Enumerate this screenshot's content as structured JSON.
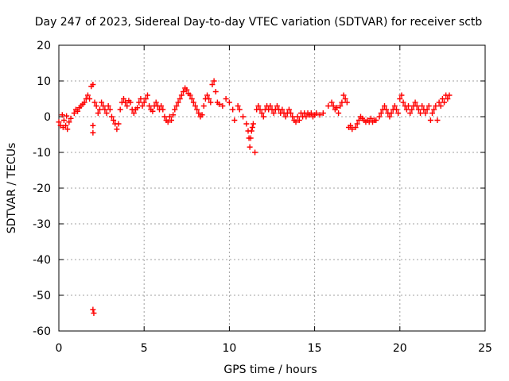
{
  "chart_data": {
    "type": "scatter",
    "title": "Day 247 of 2023, Sidereal Day-to-day VTEC variation (SDTVAR) for receiver sctb",
    "xlabel": "GPS time / hours",
    "ylabel": "SDTVAR / TECUs",
    "xlim": [
      0,
      25
    ],
    "ylim": [
      -60,
      20
    ],
    "xticks": [
      0,
      5,
      10,
      15,
      20,
      25
    ],
    "yticks": [
      -60,
      -50,
      -40,
      -30,
      -20,
      -10,
      0,
      10,
      20
    ],
    "xtick_labels": [
      "0",
      "5",
      "10",
      "15",
      "20",
      "25"
    ],
    "ytick_labels": [
      "-60",
      "-50",
      "-40",
      "-30",
      "-20",
      "-10",
      "0",
      "10",
      "20"
    ],
    "grid": true,
    "marker": "+",
    "series_color": "#ff0000",
    "series": [
      {
        "name": "SDTVAR",
        "points": [
          [
            0.0,
            -1.5
          ],
          [
            0.1,
            -2.5
          ],
          [
            0.2,
            0.5
          ],
          [
            0.25,
            -3
          ],
          [
            0.3,
            -1
          ],
          [
            0.4,
            -2.5
          ],
          [
            0.45,
            0.2
          ],
          [
            0.5,
            -3.5
          ],
          [
            0.6,
            -1.5
          ],
          [
            0.7,
            -0.5
          ],
          [
            0.9,
            1
          ],
          [
            1.0,
            2
          ],
          [
            1.1,
            1.5
          ],
          [
            1.2,
            2.5
          ],
          [
            1.3,
            3
          ],
          [
            1.4,
            3.5
          ],
          [
            1.5,
            4
          ],
          [
            1.6,
            5
          ],
          [
            1.7,
            6
          ],
          [
            1.8,
            5
          ],
          [
            1.9,
            8.5
          ],
          [
            2.0,
            9
          ],
          [
            2.0,
            -2.5
          ],
          [
            2.0,
            -4.5
          ],
          [
            2.0,
            -54
          ],
          [
            2.05,
            -55
          ],
          [
            2.1,
            4
          ],
          [
            2.2,
            3
          ],
          [
            2.3,
            1
          ],
          [
            2.4,
            2
          ],
          [
            2.5,
            4
          ],
          [
            2.6,
            3
          ],
          [
            2.7,
            2
          ],
          [
            2.8,
            1
          ],
          [
            2.9,
            3
          ],
          [
            3.0,
            2
          ],
          [
            3.1,
            0
          ],
          [
            3.2,
            -1
          ],
          [
            3.3,
            -2
          ],
          [
            3.4,
            -3.5
          ],
          [
            3.5,
            -2
          ],
          [
            3.6,
            2
          ],
          [
            3.7,
            4
          ],
          [
            3.8,
            5
          ],
          [
            3.9,
            4
          ],
          [
            4.0,
            3
          ],
          [
            4.1,
            4.5
          ],
          [
            4.2,
            4
          ],
          [
            4.3,
            2
          ],
          [
            4.4,
            1
          ],
          [
            4.5,
            2
          ],
          [
            4.6,
            2.5
          ],
          [
            4.7,
            4
          ],
          [
            4.8,
            5
          ],
          [
            4.9,
            3
          ],
          [
            5.0,
            4
          ],
          [
            5.1,
            5
          ],
          [
            5.2,
            6
          ],
          [
            5.3,
            3
          ],
          [
            5.4,
            2
          ],
          [
            5.5,
            1.5
          ],
          [
            5.6,
            3
          ],
          [
            5.7,
            4
          ],
          [
            5.8,
            3
          ],
          [
            5.9,
            2
          ],
          [
            6.0,
            3
          ],
          [
            6.1,
            2
          ],
          [
            6.2,
            0
          ],
          [
            6.3,
            -1
          ],
          [
            6.4,
            -1.5
          ],
          [
            6.5,
            0
          ],
          [
            6.6,
            -1
          ],
          [
            6.7,
            0.5
          ],
          [
            6.8,
            2
          ],
          [
            6.9,
            3
          ],
          [
            7.0,
            4
          ],
          [
            7.1,
            5
          ],
          [
            7.2,
            6
          ],
          [
            7.3,
            7
          ],
          [
            7.4,
            8
          ],
          [
            7.5,
            7.5
          ],
          [
            7.6,
            6.5
          ],
          [
            7.7,
            6
          ],
          [
            7.8,
            5
          ],
          [
            7.9,
            4
          ],
          [
            8.0,
            3
          ],
          [
            8.1,
            2
          ],
          [
            8.2,
            1
          ],
          [
            8.3,
            0
          ],
          [
            8.4,
            0.5
          ],
          [
            8.5,
            3
          ],
          [
            8.6,
            5
          ],
          [
            8.7,
            6
          ],
          [
            8.8,
            5
          ],
          [
            8.9,
            4
          ],
          [
            9.0,
            9
          ],
          [
            9.1,
            10
          ],
          [
            9.2,
            7
          ],
          [
            9.3,
            4
          ],
          [
            9.4,
            3.5
          ],
          [
            9.6,
            3
          ],
          [
            9.8,
            5
          ],
          [
            10.0,
            4
          ],
          [
            10.2,
            2
          ],
          [
            10.3,
            -1
          ],
          [
            10.5,
            3
          ],
          [
            10.6,
            2
          ],
          [
            10.8,
            0
          ],
          [
            11.0,
            -2
          ],
          [
            11.1,
            -4
          ],
          [
            11.15,
            -6
          ],
          [
            11.2,
            -8.5
          ],
          [
            11.25,
            -6
          ],
          [
            11.3,
            -4
          ],
          [
            11.35,
            -3
          ],
          [
            11.4,
            -2
          ],
          [
            11.5,
            -10
          ],
          [
            11.6,
            2
          ],
          [
            11.7,
            3
          ],
          [
            11.8,
            2
          ],
          [
            11.9,
            1
          ],
          [
            12.0,
            0
          ],
          [
            12.1,
            2
          ],
          [
            12.2,
            3
          ],
          [
            12.3,
            2
          ],
          [
            12.4,
            3
          ],
          [
            12.5,
            2
          ],
          [
            12.6,
            1
          ],
          [
            12.7,
            2
          ],
          [
            12.8,
            3
          ],
          [
            12.9,
            2
          ],
          [
            13.0,
            1
          ],
          [
            13.1,
            2
          ],
          [
            13.2,
            1
          ],
          [
            13.3,
            0
          ],
          [
            13.4,
            1
          ],
          [
            13.5,
            2
          ],
          [
            13.6,
            1
          ],
          [
            13.7,
            0
          ],
          [
            13.8,
            -1
          ],
          [
            13.9,
            -1.5
          ],
          [
            14.0,
            0
          ],
          [
            14.1,
            -1
          ],
          [
            14.2,
            1
          ],
          [
            14.3,
            0
          ],
          [
            14.4,
            1
          ],
          [
            14.5,
            0
          ],
          [
            14.6,
            1
          ],
          [
            14.7,
            0.5
          ],
          [
            14.8,
            1
          ],
          [
            14.9,
            0
          ],
          [
            15.0,
            0.5
          ],
          [
            15.1,
            1
          ],
          [
            15.3,
            0.5
          ],
          [
            15.5,
            1
          ],
          [
            15.8,
            3
          ],
          [
            16.0,
            4
          ],
          [
            16.1,
            3
          ],
          [
            16.2,
            2
          ],
          [
            16.3,
            2.5
          ],
          [
            16.4,
            1
          ],
          [
            16.5,
            3
          ],
          [
            16.6,
            4
          ],
          [
            16.7,
            6
          ],
          [
            16.8,
            5
          ],
          [
            16.9,
            4
          ],
          [
            17.0,
            -3
          ],
          [
            17.1,
            -2.5
          ],
          [
            17.2,
            -3.5
          ],
          [
            17.4,
            -3
          ],
          [
            17.5,
            -2
          ],
          [
            17.6,
            -1
          ],
          [
            17.7,
            0
          ],
          [
            17.8,
            -0.5
          ],
          [
            17.9,
            -1
          ],
          [
            18.0,
            -1.5
          ],
          [
            18.1,
            -1
          ],
          [
            18.2,
            -1.5
          ],
          [
            18.3,
            -0.5
          ],
          [
            18.4,
            -1.5
          ],
          [
            18.5,
            -1
          ],
          [
            18.6,
            -1
          ],
          [
            18.8,
            0
          ],
          [
            18.9,
            1
          ],
          [
            19.0,
            2
          ],
          [
            19.1,
            3
          ],
          [
            19.2,
            2
          ],
          [
            19.3,
            1
          ],
          [
            19.4,
            0
          ],
          [
            19.5,
            1
          ],
          [
            19.6,
            2
          ],
          [
            19.7,
            3
          ],
          [
            19.8,
            2
          ],
          [
            19.9,
            1
          ],
          [
            20.0,
            5
          ],
          [
            20.1,
            6
          ],
          [
            20.2,
            4
          ],
          [
            20.3,
            3
          ],
          [
            20.4,
            2
          ],
          [
            20.5,
            3
          ],
          [
            20.6,
            1
          ],
          [
            20.7,
            2
          ],
          [
            20.8,
            3
          ],
          [
            20.9,
            4
          ],
          [
            21.0,
            3
          ],
          [
            21.1,
            2
          ],
          [
            21.2,
            1
          ],
          [
            21.3,
            3
          ],
          [
            21.4,
            2
          ],
          [
            21.5,
            1
          ],
          [
            21.6,
            2
          ],
          [
            21.7,
            3
          ],
          [
            21.8,
            -1
          ],
          [
            21.9,
            1
          ],
          [
            22.0,
            2
          ],
          [
            22.1,
            3
          ],
          [
            22.2,
            -1
          ],
          [
            22.3,
            4
          ],
          [
            22.4,
            3
          ],
          [
            22.5,
            5
          ],
          [
            22.6,
            4
          ],
          [
            22.7,
            6
          ],
          [
            22.8,
            5
          ],
          [
            22.9,
            6
          ]
        ]
      }
    ]
  }
}
